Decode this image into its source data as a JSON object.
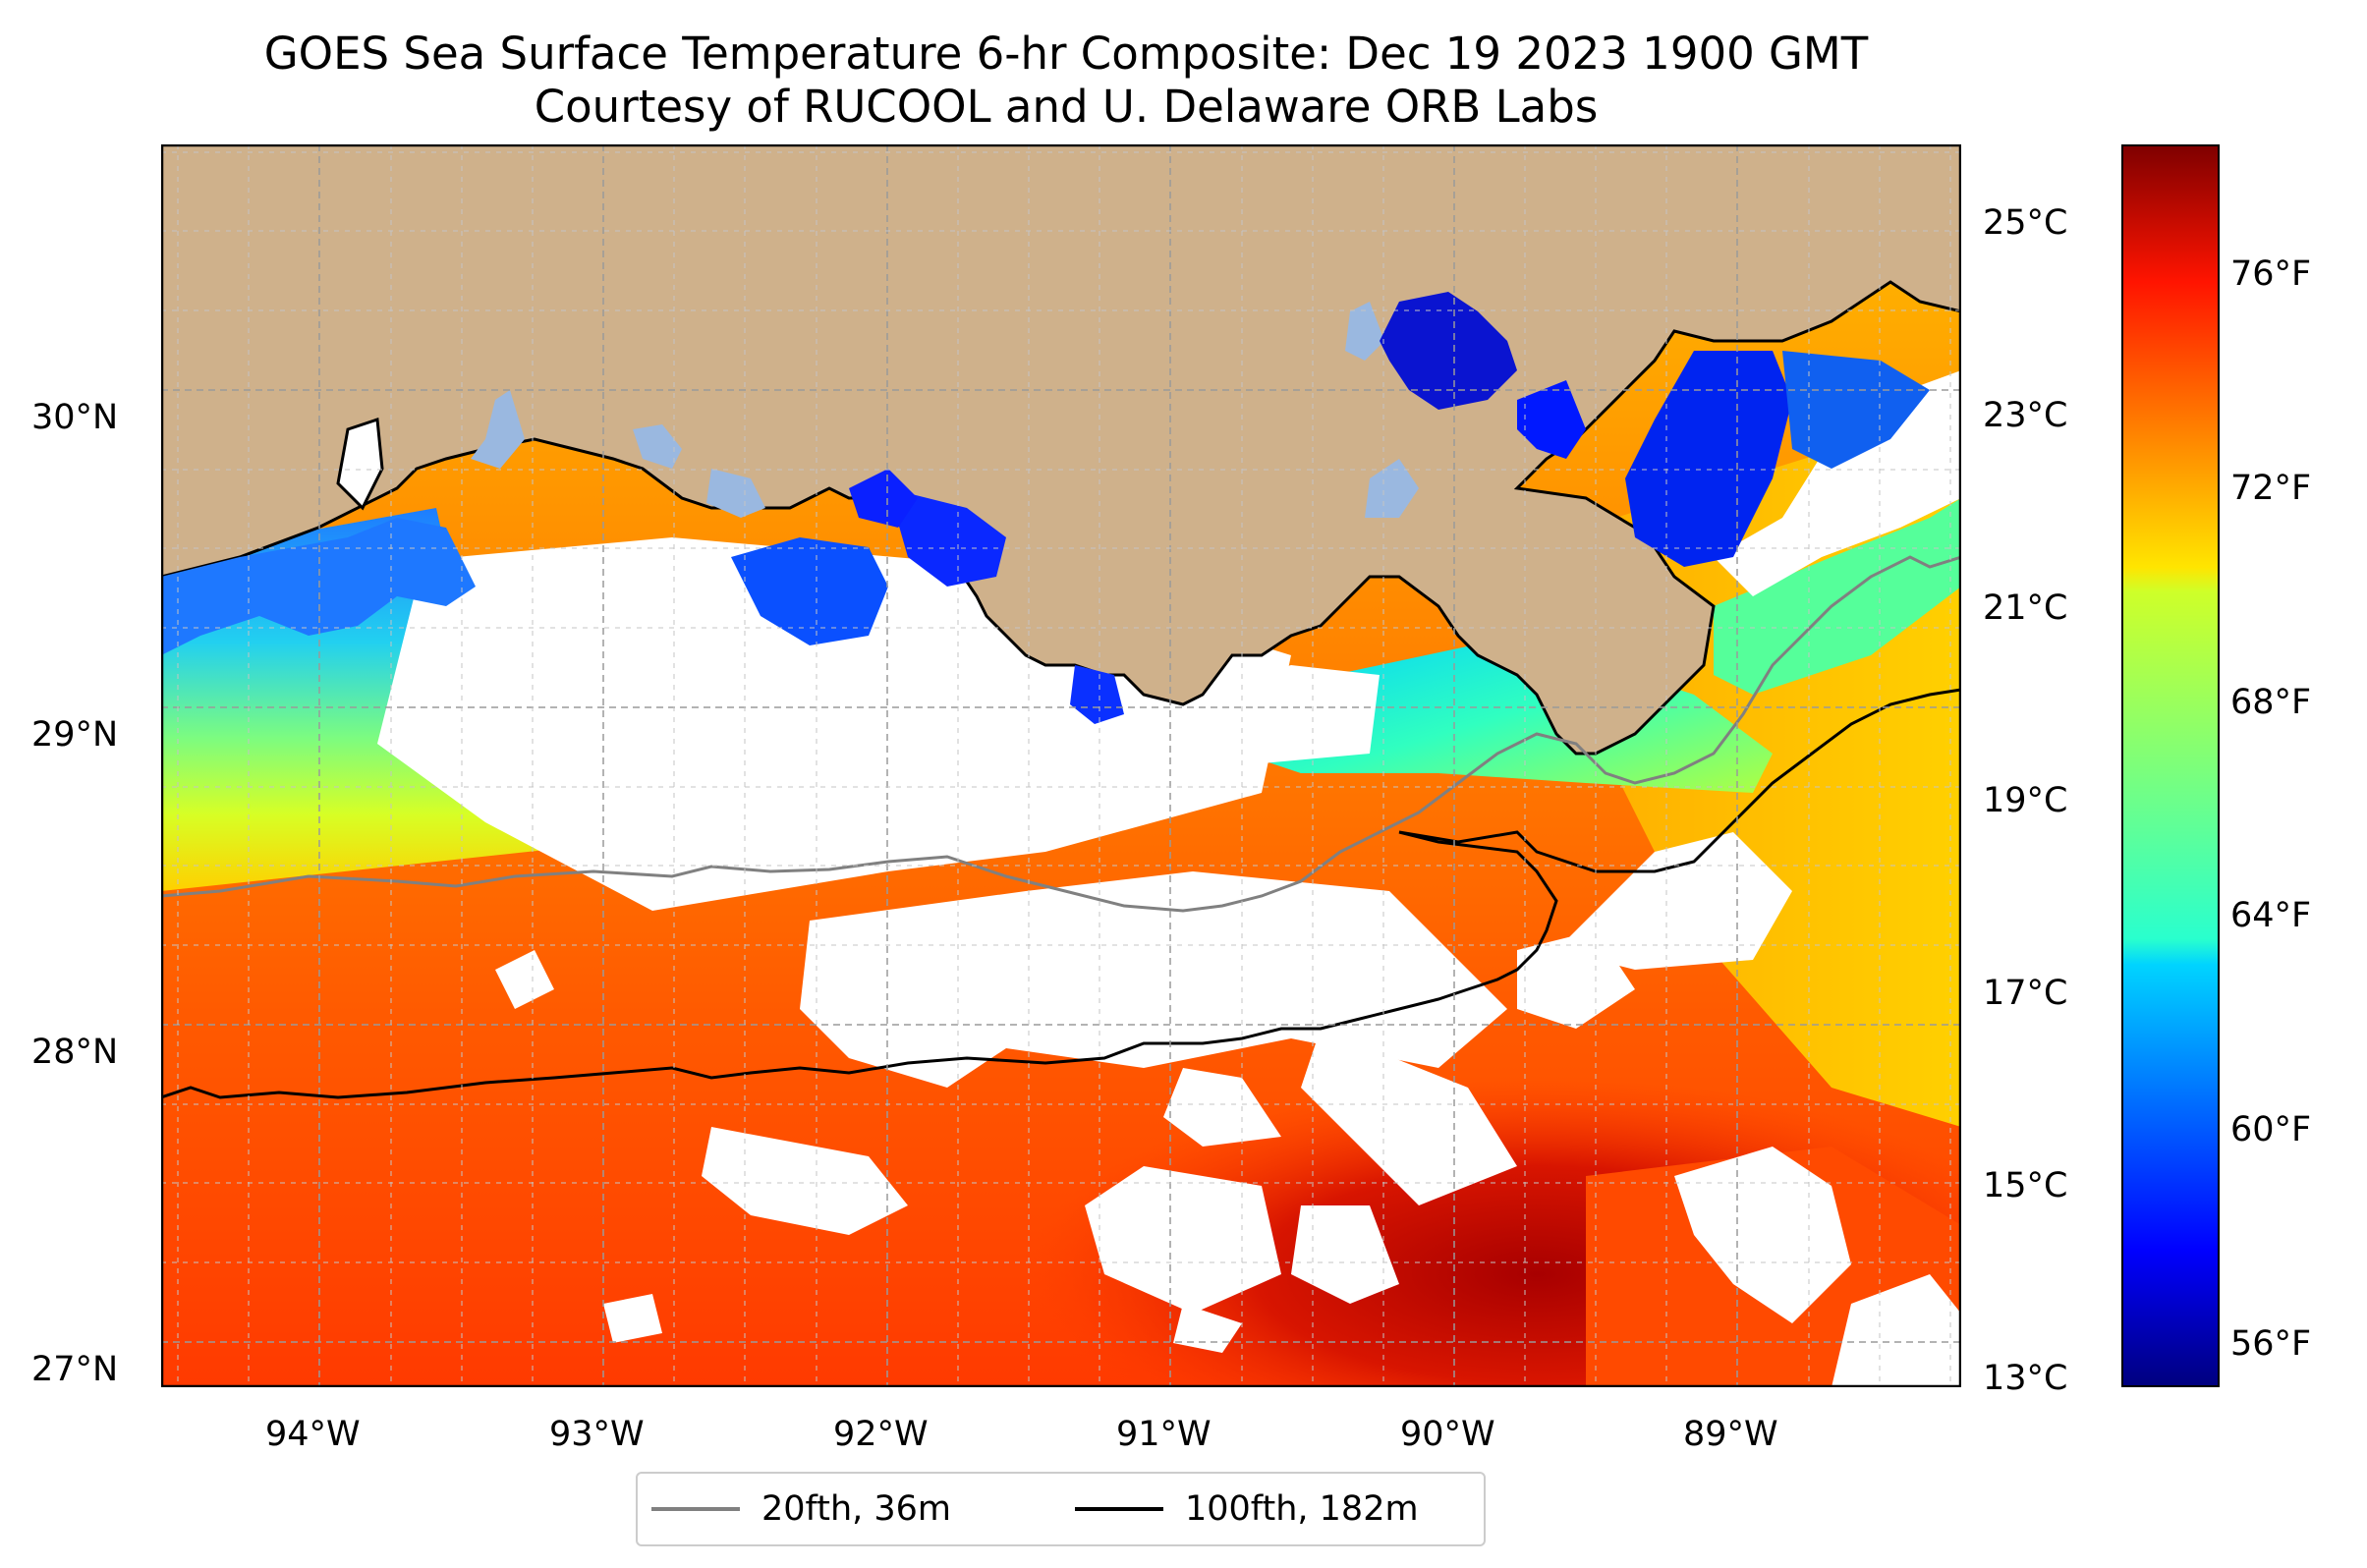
{
  "title": {
    "line1": "GOES Sea Surface Temperature 6-hr Composite: Dec 19 2023 1900 GMT",
    "line2": "Courtesy of RUCOOL and U. Delaware ORB Labs"
  },
  "map": {
    "lon_range": [
      -94.55,
      -88.2
    ],
    "lat_range": [
      26.93,
      30.85
    ],
    "lon_ticks": [
      "94°W",
      "93°W",
      "92°W",
      "91°W",
      "90°W",
      "89°W"
    ],
    "lat_ticks": [
      "27°N",
      "28°N",
      "29°N",
      "30°N"
    ],
    "land_color": "#cfb18b",
    "cloud_color": "#ffffff",
    "lake_color": "#9ab8e0"
  },
  "colorbar": {
    "celsius_ticks": [
      "13°C",
      "15°C",
      "17°C",
      "19°C",
      "21°C",
      "23°C",
      "25°C"
    ],
    "fahrenheit_ticks": [
      "56°F",
      "60°F",
      "64°F",
      "68°F",
      "72°F",
      "76°F"
    ],
    "range_c": [
      12.9,
      25.8
    ],
    "colormap": "jet"
  },
  "legend": {
    "items": [
      {
        "label": "20fth, 36m",
        "color": "#808080"
      },
      {
        "label": "100fth, 182m",
        "color": "#000000"
      }
    ]
  }
}
